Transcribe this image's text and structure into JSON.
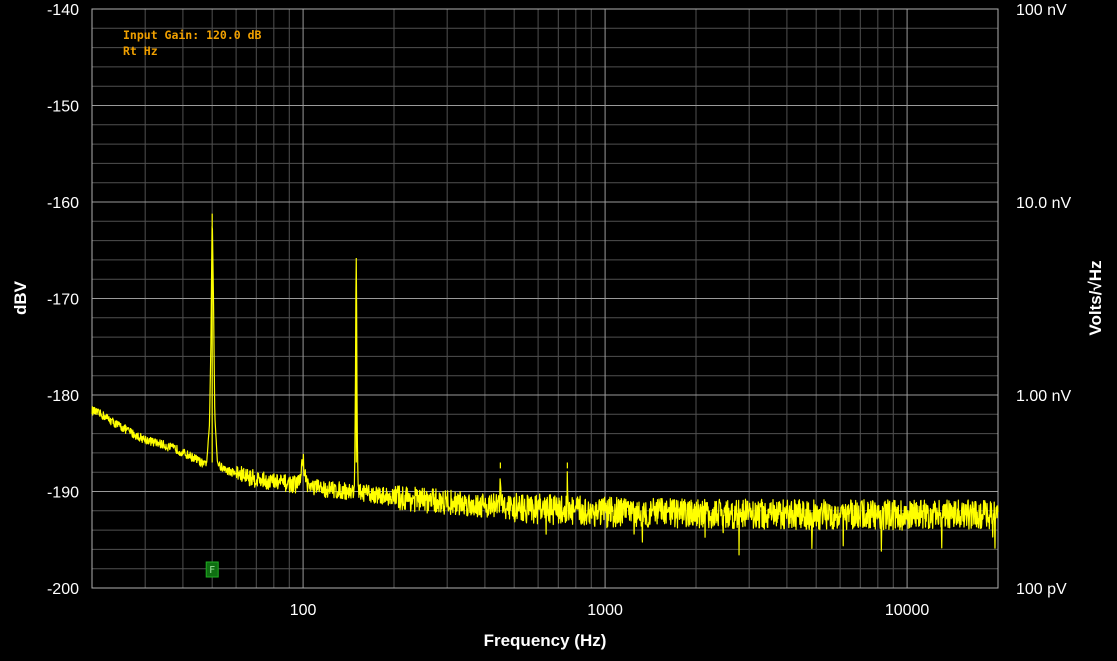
{
  "chart_data": {
    "type": "line",
    "title": "",
    "annotations": [
      "Input Gain: 120.0 dB",
      "Rt Hz"
    ],
    "xlabel": "Frequency (Hz)",
    "ylabel": "dBV",
    "y2label": "Volts/√Hz",
    "xscale": "log",
    "xlim": [
      20,
      20000
    ],
    "ylim": [
      -200,
      -140
    ],
    "grid": true,
    "colors": {
      "background": "#000000",
      "trace": "#ffff00",
      "grid_major": "#9a9a9a",
      "grid_minor": "#505050",
      "annotation": "#f0a000",
      "marker": "#0f6e12"
    },
    "x_ticks": [
      {
        "value": 100,
        "label": "100"
      },
      {
        "value": 1000,
        "label": "1000"
      },
      {
        "value": 10000,
        "label": "10000"
      }
    ],
    "y_ticks": [
      {
        "value": -140,
        "label": "-140"
      },
      {
        "value": -150,
        "label": "-150"
      },
      {
        "value": -160,
        "label": "-160"
      },
      {
        "value": -170,
        "label": "-170"
      },
      {
        "value": -180,
        "label": "-180"
      },
      {
        "value": -190,
        "label": "-190"
      },
      {
        "value": -200,
        "label": "-200"
      }
    ],
    "y2_ticks": [
      {
        "value": -140,
        "label": "100 nV"
      },
      {
        "value": -160,
        "label": "10.0 nV"
      },
      {
        "value": -180,
        "label": "1.00 nV"
      },
      {
        "value": -200,
        "label": "100 pV"
      }
    ],
    "marker": {
      "x": 50,
      "label": "F"
    },
    "series": [
      {
        "x": [
          20,
          22,
          24,
          26,
          28,
          30,
          32,
          34,
          36,
          38,
          40,
          42,
          44,
          46,
          47,
          48,
          49,
          49.5,
          50,
          50.5,
          51,
          52,
          53,
          55,
          57,
          60,
          63,
          66,
          70,
          75,
          80,
          85,
          90,
          95,
          98,
          100,
          102,
          105,
          110,
          115,
          120,
          125,
          130,
          135,
          140,
          145,
          147,
          148,
          149,
          149.5,
          150,
          150.5,
          151,
          152,
          153,
          155,
          160,
          170,
          180,
          190,
          200,
          220,
          250,
          280,
          300,
          350,
          400,
          440,
          448,
          450,
          452,
          460,
          500,
          600,
          700,
          740,
          748,
          750,
          752,
          760,
          800,
          900,
          1000,
          1200,
          1500,
          2000,
          2500,
          3000,
          4000,
          5000,
          6000,
          7000,
          8000,
          10000,
          12000,
          15000,
          18000,
          20000
        ],
        "y": [
          -181.6,
          -182.2,
          -183.0,
          -183.6,
          -184.2,
          -184.6,
          -184.9,
          -185.1,
          -185.4,
          -185.6,
          -186.0,
          -186.3,
          -186.6,
          -187.0,
          -187.3,
          -186.8,
          -183.0,
          -175.0,
          -161.2,
          -170.0,
          -182.0,
          -186.8,
          -187.4,
          -187.7,
          -187.9,
          -188.1,
          -188.3,
          -188.5,
          -188.7,
          -188.9,
          -189.0,
          -189.1,
          -189.2,
          -189.3,
          -188.6,
          -186.6,
          -188.8,
          -189.5,
          -189.6,
          -189.7,
          -189.8,
          -189.8,
          -189.9,
          -189.9,
          -190.0,
          -190.0,
          -190.0,
          -189.3,
          -180.0,
          -170.0,
          -165.8,
          -172.0,
          -183.0,
          -189.2,
          -190.0,
          -190.1,
          -190.2,
          -190.3,
          -190.4,
          -190.5,
          -190.6,
          -190.7,
          -190.9,
          -191.0,
          -191.1,
          -191.3,
          -191.4,
          -191.5,
          -191.2,
          -187.6,
          -191.2,
          -191.6,
          -191.7,
          -191.8,
          -191.9,
          -191.9,
          -191.6,
          -187.6,
          -191.6,
          -192.0,
          -192.0,
          -192.1,
          -192.1,
          -192.2,
          -192.2,
          -192.3,
          -192.3,
          -192.3,
          -192.4,
          -192.4,
          -192.4,
          -192.4,
          -192.4,
          -192.4,
          -192.4,
          -192.4,
          -192.4,
          -192.4
        ]
      }
    ]
  }
}
